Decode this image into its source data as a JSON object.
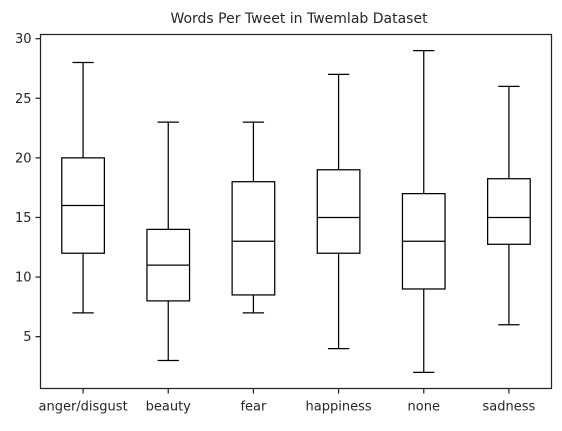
{
  "chart_data": {
    "type": "box",
    "title": "Words Per Tweet in Twemlab Dataset",
    "xlabel": "",
    "ylabel": "",
    "categories": [
      "anger/disgust",
      "beauty",
      "fear",
      "happiness",
      "none",
      "sadness"
    ],
    "boxes": [
      {
        "category": "anger/disgust",
        "whisker_low": 7,
        "q1": 12,
        "median": 16,
        "q3": 20,
        "whisker_high": 28
      },
      {
        "category": "beauty",
        "whisker_low": 3,
        "q1": 8,
        "median": 11,
        "q3": 14,
        "whisker_high": 23
      },
      {
        "category": "fear",
        "whisker_low": 7,
        "q1": 8.5,
        "median": 13,
        "q3": 18,
        "whisker_high": 23
      },
      {
        "category": "happiness",
        "whisker_low": 4,
        "q1": 12,
        "median": 15,
        "q3": 19,
        "whisker_high": 27
      },
      {
        "category": "none",
        "whisker_low": 2,
        "q1": 9,
        "median": 13,
        "q3": 17,
        "whisker_high": 29
      },
      {
        "category": "sadness",
        "whisker_low": 6,
        "q1": 12.75,
        "median": 15,
        "q3": 18.25,
        "whisker_high": 26
      }
    ],
    "yticks": [
      5,
      10,
      15,
      20,
      25,
      30
    ],
    "ylim": [
      0.65,
      30.35
    ],
    "grid": false,
    "legend": "none",
    "colors": {
      "box": "#000000",
      "axis": "#262626",
      "background": "#ffffff"
    }
  }
}
